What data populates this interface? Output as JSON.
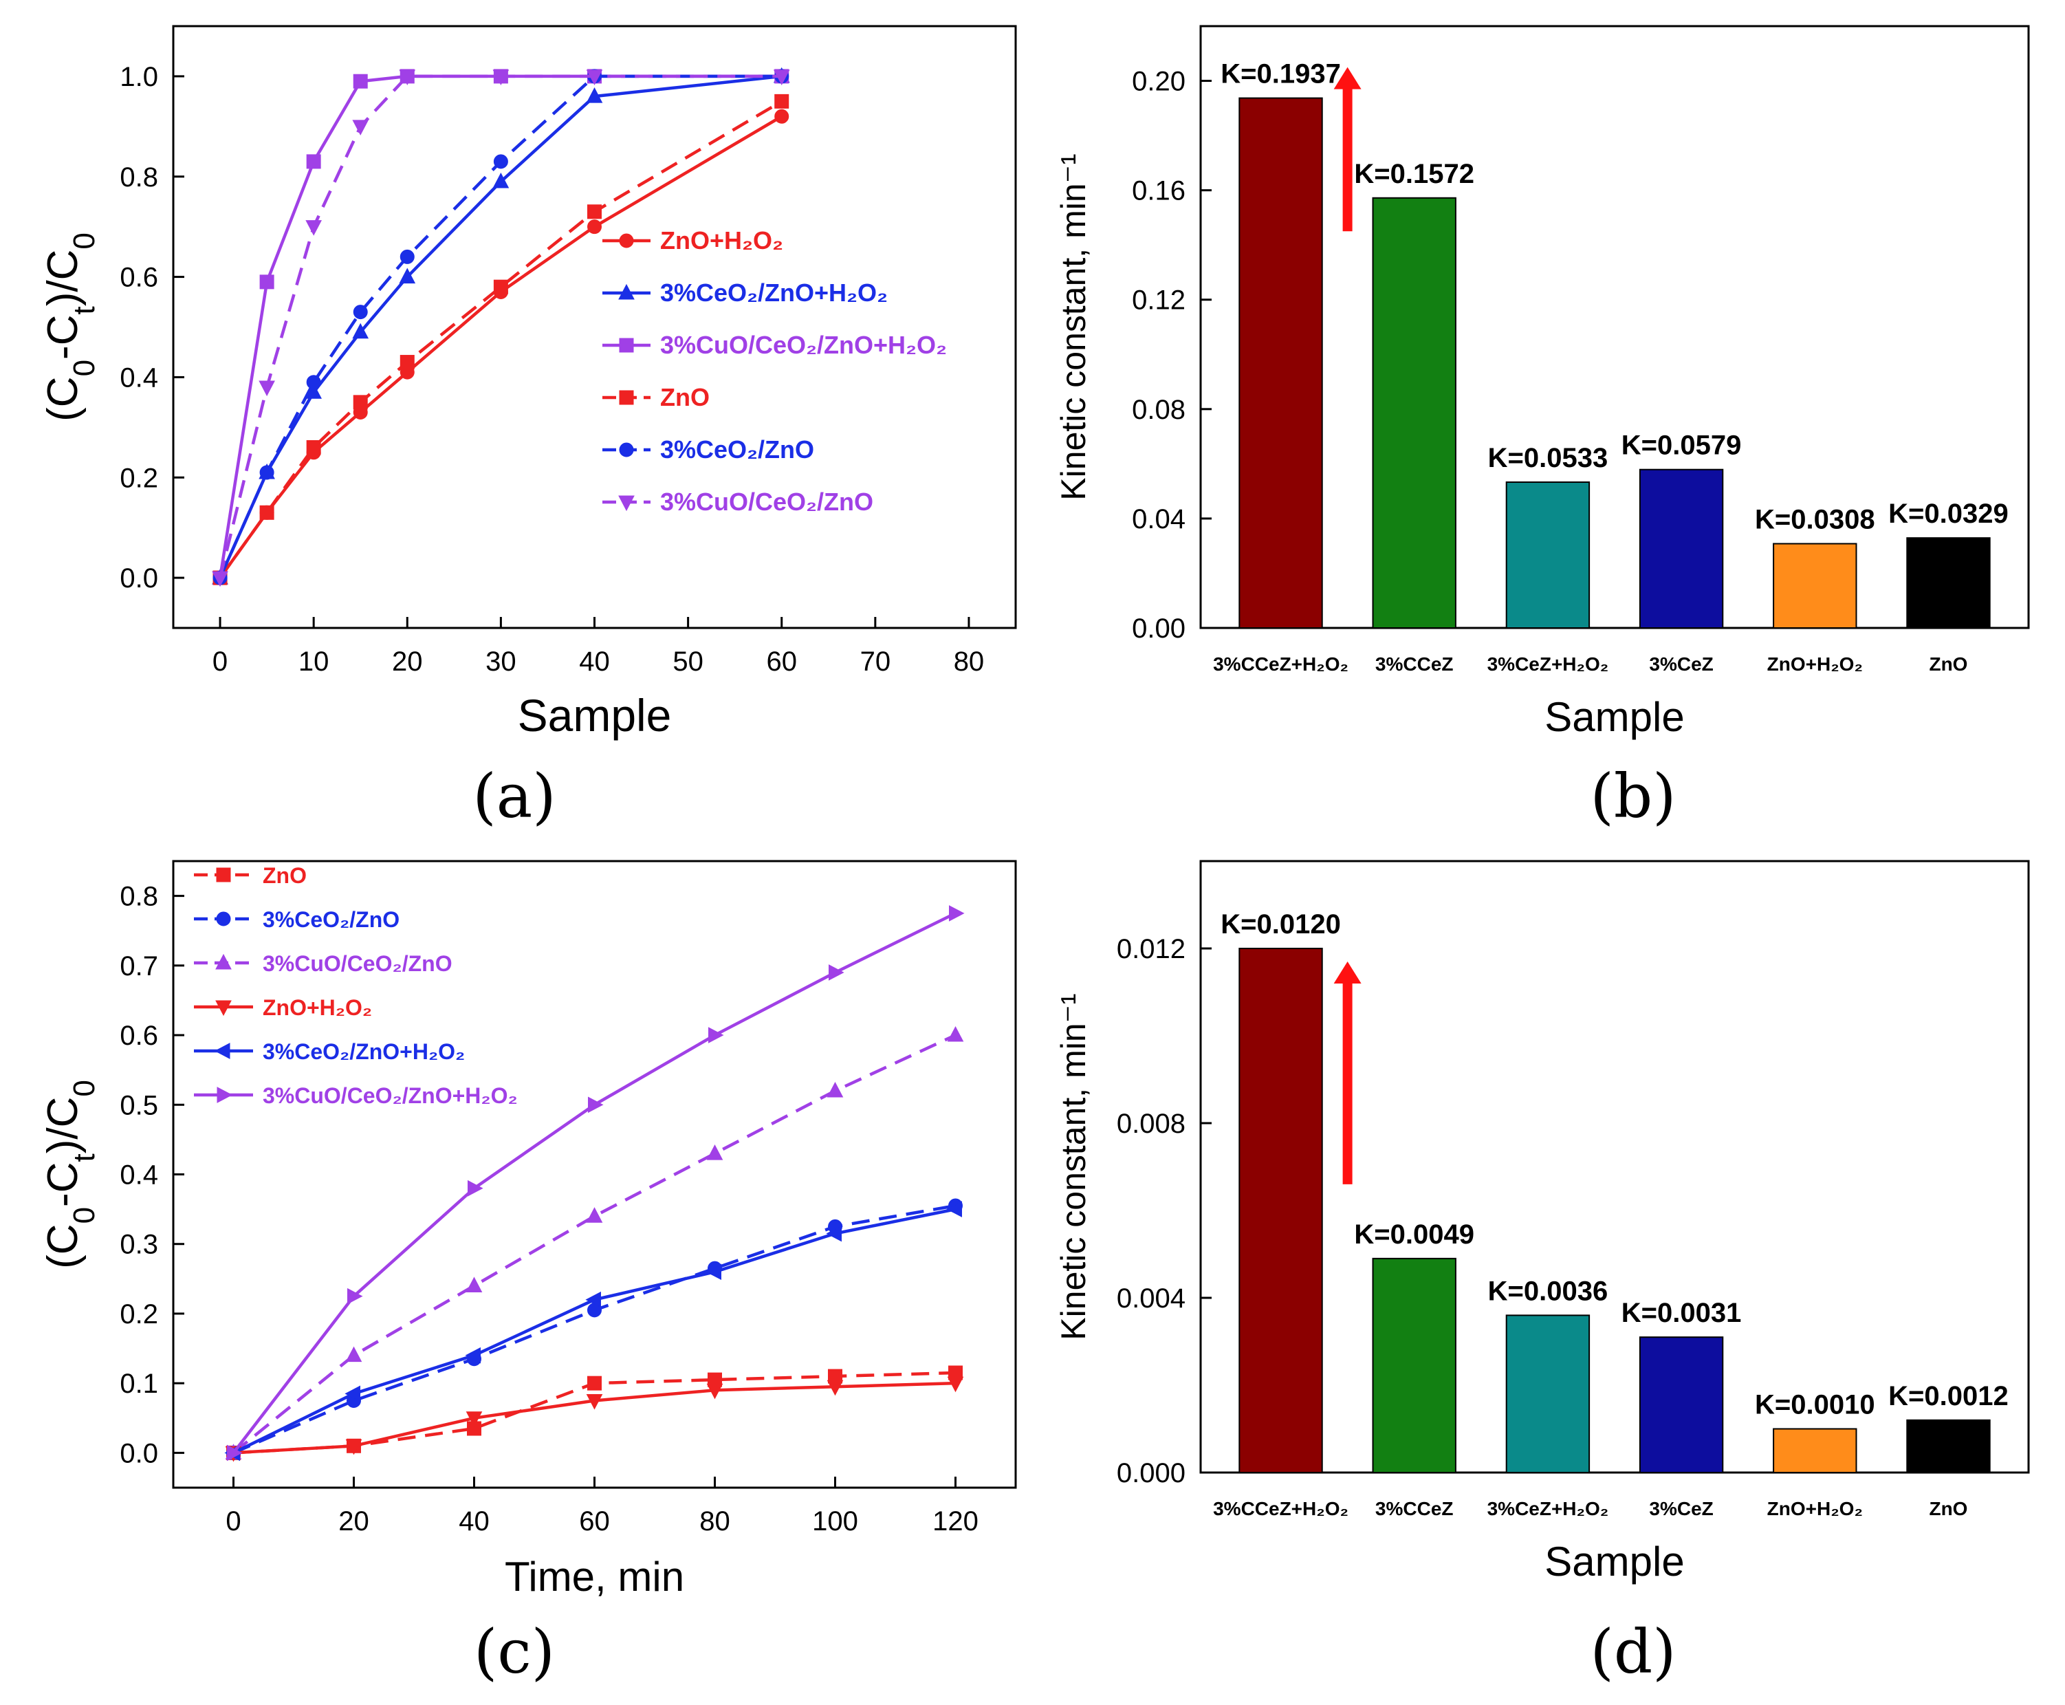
{
  "chart_data": [
    {
      "id": "a",
      "type": "line",
      "panel_label": "(a)",
      "xlabel": "Sample",
      "ylabel": "(C0-Ct)/C0",
      "xlim": [
        -5,
        85
      ],
      "ylim": [
        -0.1,
        1.1
      ],
      "xticks": [
        0,
        10,
        20,
        30,
        40,
        50,
        60,
        70,
        80
      ],
      "yticks": [
        0.0,
        0.2,
        0.4,
        0.6,
        0.8,
        1.0
      ],
      "legend_position": "right-middle",
      "series": [
        {
          "name": "ZnO+H2O2",
          "label": "ZnO+H₂O₂",
          "color": "#ee2222",
          "dash": false,
          "marker": "circle",
          "x": [
            0,
            5,
            10,
            15,
            20,
            30,
            40,
            60
          ],
          "y": [
            0,
            0.13,
            0.25,
            0.33,
            0.41,
            0.57,
            0.7,
            0.92
          ]
        },
        {
          "name": "3%CeO2/ZnO+H2O2",
          "label": "3%CeO₂/ZnO+H₂O₂",
          "color": "#1a2ee6",
          "dash": false,
          "marker": "triangle-up",
          "x": [
            0,
            5,
            10,
            15,
            20,
            30,
            40,
            60
          ],
          "y": [
            0,
            0.21,
            0.37,
            0.49,
            0.6,
            0.79,
            0.96,
            1.0
          ]
        },
        {
          "name": "3%CuO/CeO2/ZnO+H2O2",
          "label": "3%CuO/CeO₂/ZnO+H₂O₂",
          "color": "#a040e6",
          "dash": false,
          "marker": "square",
          "x": [
            0,
            5,
            10,
            15,
            20,
            30,
            40,
            60
          ],
          "y": [
            0,
            0.59,
            0.83,
            0.99,
            1.0,
            1.0,
            1.0,
            1.0
          ]
        },
        {
          "name": "ZnO",
          "label": "ZnO",
          "color": "#ee2222",
          "dash": true,
          "marker": "square",
          "x": [
            0,
            5,
            10,
            15,
            20,
            30,
            40,
            60
          ],
          "y": [
            0,
            0.13,
            0.26,
            0.35,
            0.43,
            0.58,
            0.73,
            0.95
          ]
        },
        {
          "name": "3%CeO2/ZnO",
          "label": "3%CeO₂/ZnO",
          "color": "#1a2ee6",
          "dash": true,
          "marker": "circle",
          "x": [
            0,
            5,
            10,
            15,
            20,
            30,
            40,
            60
          ],
          "y": [
            0,
            0.21,
            0.39,
            0.53,
            0.64,
            0.83,
            1.0,
            1.0
          ]
        },
        {
          "name": "3%CuO/CeO2/ZnO",
          "label": "3%CuO/CeO₂/ZnO",
          "color": "#a040e6",
          "dash": true,
          "marker": "triangle-down",
          "x": [
            0,
            5,
            10,
            15,
            20,
            30,
            40,
            60
          ],
          "y": [
            0,
            0.38,
            0.7,
            0.9,
            1.0,
            1.0,
            1.0,
            1.0
          ]
        }
      ]
    },
    {
      "id": "b",
      "type": "bar",
      "panel_label": "(b)",
      "xlabel": "Sample",
      "ylabel": "Kinetic constant, min⁻¹",
      "ylim": [
        0,
        0.22
      ],
      "yticks": [
        0.0,
        0.04,
        0.08,
        0.12,
        0.16,
        0.2
      ],
      "ytick_decimals": 2,
      "categories": [
        "3%CCeZ+H₂O₂",
        "3%CCeZ",
        "3%CeZ+H₂O₂",
        "3%CeZ",
        "ZnO+H₂O₂",
        "ZnO"
      ],
      "values": [
        0.1937,
        0.1572,
        0.0533,
        0.0579,
        0.0308,
        0.0329
      ],
      "data_labels": [
        "K=0.1937",
        "K=0.1572",
        "K=0.0533",
        "K=0.0579",
        "K=0.0308",
        "K=0.0329"
      ],
      "colors": [
        "#8b0000",
        "#128012",
        "#0a8a8a",
        "#0d0d9e",
        "#ff8c1a",
        "#000000"
      ],
      "annotation": "red arrow pointing up between first two bars"
    },
    {
      "id": "c",
      "type": "line",
      "panel_label": "(c)",
      "xlabel": "Time, min",
      "ylabel": "(C0-Ct)/C0",
      "xlim": [
        -10,
        130
      ],
      "ylim": [
        -0.05,
        0.85
      ],
      "xticks": [
        0,
        20,
        40,
        60,
        80,
        100,
        120
      ],
      "yticks": [
        0.0,
        0.1,
        0.2,
        0.3,
        0.4,
        0.5,
        0.6,
        0.7,
        0.8
      ],
      "legend_position": "top-left",
      "series": [
        {
          "name": "ZnO",
          "label": "ZnO",
          "color": "#ee2222",
          "dash": true,
          "marker": "square",
          "x": [
            0,
            20,
            40,
            60,
            80,
            100,
            120
          ],
          "y": [
            0,
            0.01,
            0.035,
            0.1,
            0.105,
            0.11,
            0.115
          ]
        },
        {
          "name": "3%CeO2/ZnO",
          "label": "3%CeO₂/ZnO",
          "color": "#1a2ee6",
          "dash": true,
          "marker": "circle",
          "x": [
            0,
            20,
            40,
            60,
            80,
            100,
            120
          ],
          "y": [
            0,
            0.075,
            0.135,
            0.205,
            0.265,
            0.325,
            0.355
          ]
        },
        {
          "name": "3%CuO/CeO2/ZnO",
          "label": "3%CuO/CeO₂/ZnO",
          "color": "#a040e6",
          "dash": true,
          "marker": "triangle-up",
          "x": [
            0,
            20,
            40,
            60,
            80,
            100,
            120
          ],
          "y": [
            0,
            0.14,
            0.24,
            0.34,
            0.43,
            0.52,
            0.6
          ]
        },
        {
          "name": "ZnO+H2O2",
          "label": "ZnO+H₂O₂",
          "color": "#ee2222",
          "dash": false,
          "marker": "triangle-down",
          "x": [
            0,
            20,
            40,
            60,
            80,
            100,
            120
          ],
          "y": [
            0,
            0.01,
            0.05,
            0.075,
            0.09,
            0.095,
            0.1
          ]
        },
        {
          "name": "3%CeO2/ZnO+H2O2",
          "label": "3%CeO₂/ZnO+H₂O₂",
          "color": "#1a2ee6",
          "dash": false,
          "marker": "triangle-left",
          "x": [
            0,
            20,
            40,
            60,
            80,
            100,
            120
          ],
          "y": [
            0,
            0.085,
            0.14,
            0.22,
            0.26,
            0.315,
            0.35
          ]
        },
        {
          "name": "3%CuO/CeO2/ZnO+H2O2",
          "label": "3%CuO/CeO₂/ZnO+H₂O₂",
          "color": "#a040e6",
          "dash": false,
          "marker": "triangle-right",
          "x": [
            0,
            20,
            40,
            60,
            80,
            100,
            120
          ],
          "y": [
            0,
            0.225,
            0.38,
            0.5,
            0.6,
            0.69,
            0.775
          ]
        }
      ]
    },
    {
      "id": "d",
      "type": "bar",
      "panel_label": "(d)",
      "xlabel": "Sample",
      "ylabel": "Kinetic constant, min⁻¹",
      "ylim": [
        0,
        0.014
      ],
      "yticks": [
        0.0,
        0.004,
        0.008,
        0.012
      ],
      "ytick_decimals": 3,
      "categories": [
        "3%CCeZ+H₂O₂",
        "3%CCeZ",
        "3%CeZ+H₂O₂",
        "3%CeZ",
        "ZnO+H₂O₂",
        "ZnO"
      ],
      "values": [
        0.012,
        0.0049,
        0.0036,
        0.0031,
        0.001,
        0.0012
      ],
      "data_labels": [
        "K=0.0120",
        "K=0.0049",
        "K=0.0036",
        "K=0.0031",
        "K=0.0010",
        "K=0.0012"
      ],
      "colors": [
        "#8b0000",
        "#128012",
        "#0a8a8a",
        "#0d0d9e",
        "#ff8c1a",
        "#000000"
      ],
      "annotation": "red arrow pointing up between first two bars"
    }
  ]
}
